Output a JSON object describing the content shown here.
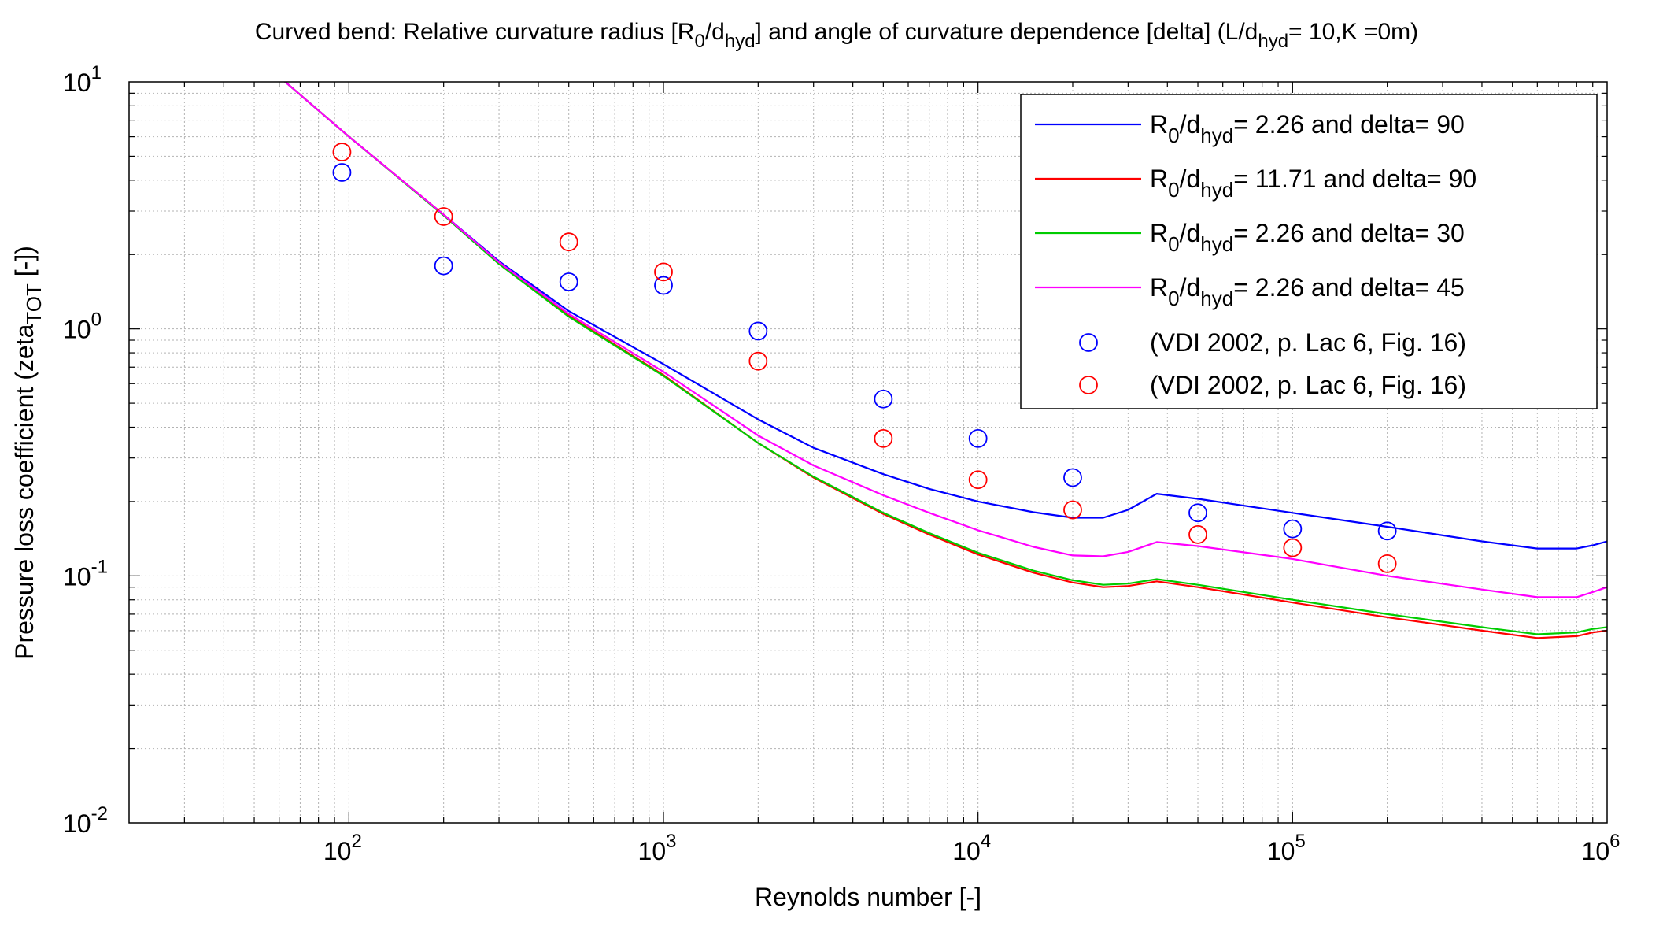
{
  "chart_data": {
    "type": "line",
    "title": {
      "p1": "Curved bend: Relative curvature radius [R",
      "s1": "0",
      "p2": "/d",
      "s2": "hyd",
      "p3": "] and angle of curvature dependence [delta] (L/d",
      "s3": "hyd",
      "p4": "= 10,K =0m)"
    },
    "xlabel": "Reynolds number [-]",
    "ylabel": {
      "main": "Pressure loss coefficient (zeta",
      "sub": "TOT",
      "end": " [-])"
    },
    "x_scale": "log",
    "y_scale": "log",
    "xlim": [
      20,
      1000000
    ],
    "ylim": [
      0.01,
      10
    ],
    "grid": true,
    "legend_position": "top-right",
    "x_ticks": [
      {
        "value": 100,
        "base": "10",
        "exp": "2"
      },
      {
        "value": 1000,
        "base": "10",
        "exp": "3"
      },
      {
        "value": 10000,
        "base": "10",
        "exp": "4"
      },
      {
        "value": 100000,
        "base": "10",
        "exp": "5"
      },
      {
        "value": 1000000,
        "base": "10",
        "exp": "6"
      }
    ],
    "y_ticks": [
      {
        "value": 0.01,
        "base": "10",
        "exp": "-2"
      },
      {
        "value": 0.1,
        "base": "10",
        "exp": "-1"
      },
      {
        "value": 1,
        "base": "10",
        "exp": "0"
      },
      {
        "value": 10,
        "base": "10",
        "exp": "1"
      }
    ],
    "series": [
      {
        "kind": "line",
        "color": "#0000ff",
        "label": {
          "a": "R",
          "b": "0",
          "c": "/d",
          "d": "hyd",
          "e": "= 2.26 and delta= 90"
        },
        "x": [
          60,
          100,
          200,
          300,
          500,
          1000,
          2000,
          3000,
          5000,
          7000,
          10000,
          15000,
          20000,
          25000,
          30000,
          37000,
          50000,
          100000,
          200000,
          400000,
          600000,
          800000,
          900000,
          1000000
        ],
        "y": [
          10.5,
          6.0,
          2.9,
          1.88,
          1.18,
          0.72,
          0.43,
          0.33,
          0.258,
          0.225,
          0.2,
          0.181,
          0.172,
          0.172,
          0.185,
          0.215,
          0.205,
          0.18,
          0.158,
          0.138,
          0.129,
          0.129,
          0.133,
          0.138
        ]
      },
      {
        "kind": "line",
        "color": "#ff0000",
        "label": {
          "a": "R",
          "b": "0",
          "c": "/d",
          "d": "hyd",
          "e": "= 11.71 and delta= 90"
        },
        "x": [
          60,
          100,
          200,
          300,
          500,
          1000,
          2000,
          3000,
          5000,
          7000,
          10000,
          15000,
          20000,
          25000,
          30000,
          37000,
          50000,
          100000,
          200000,
          400000,
          600000,
          800000,
          900000,
          1000000
        ],
        "y": [
          10.5,
          6.0,
          2.9,
          1.85,
          1.13,
          0.65,
          0.345,
          0.25,
          0.178,
          0.147,
          0.122,
          0.103,
          0.094,
          0.09,
          0.091,
          0.095,
          0.09,
          0.078,
          0.068,
          0.06,
          0.056,
          0.057,
          0.059,
          0.06
        ]
      },
      {
        "kind": "line",
        "color": "#00cc00",
        "label": {
          "a": "R",
          "b": "0",
          "c": "/d",
          "d": "hyd",
          "e": "= 2.26 and delta= 30"
        },
        "x": [
          60,
          100,
          200,
          300,
          500,
          1000,
          2000,
          3000,
          5000,
          7000,
          10000,
          15000,
          20000,
          25000,
          30000,
          37000,
          50000,
          100000,
          200000,
          400000,
          600000,
          800000,
          900000,
          1000000
        ],
        "y": [
          10.5,
          6.0,
          2.88,
          1.83,
          1.12,
          0.645,
          0.345,
          0.252,
          0.18,
          0.149,
          0.124,
          0.105,
          0.096,
          0.092,
          0.093,
          0.097,
          0.092,
          0.08,
          0.07,
          0.062,
          0.058,
          0.059,
          0.061,
          0.062
        ]
      },
      {
        "kind": "line",
        "color": "#ff00ff",
        "label": {
          "a": "R",
          "b": "0",
          "c": "/d",
          "d": "hyd",
          "e": "= 2.26 and delta= 45"
        },
        "x": [
          60,
          100,
          200,
          300,
          500,
          1000,
          2000,
          3000,
          5000,
          7000,
          10000,
          15000,
          20000,
          25000,
          30000,
          37000,
          50000,
          100000,
          200000,
          400000,
          600000,
          800000,
          900000,
          1000000
        ],
        "y": [
          10.5,
          6.0,
          2.9,
          1.86,
          1.15,
          0.67,
          0.37,
          0.28,
          0.212,
          0.18,
          0.153,
          0.131,
          0.121,
          0.12,
          0.125,
          0.137,
          0.132,
          0.117,
          0.1,
          0.088,
          0.082,
          0.082,
          0.086,
          0.09
        ]
      },
      {
        "kind": "marker",
        "color": "#0000ff",
        "label": {
          "a": "",
          "b": "",
          "c": "",
          "d": "",
          "e": "(VDI 2002, p. Lac 6, Fig. 16)"
        },
        "x": [
          95,
          200,
          500,
          1000,
          2000,
          5000,
          10000,
          20000,
          50000,
          100000,
          200000
        ],
        "y": [
          4.3,
          1.8,
          1.55,
          1.5,
          0.98,
          0.52,
          0.36,
          0.25,
          0.18,
          0.155,
          0.152
        ]
      },
      {
        "kind": "marker",
        "color": "#ff0000",
        "label": {
          "a": "",
          "b": "",
          "c": "",
          "d": "",
          "e": "(VDI 2002, p. Lac 6, Fig. 16)"
        },
        "x": [
          95,
          200,
          500,
          1000,
          2000,
          5000,
          10000,
          20000,
          50000,
          100000,
          200000
        ],
        "y": [
          5.2,
          2.85,
          2.25,
          1.7,
          0.74,
          0.36,
          0.245,
          0.185,
          0.147,
          0.13,
          0.112
        ]
      }
    ]
  }
}
